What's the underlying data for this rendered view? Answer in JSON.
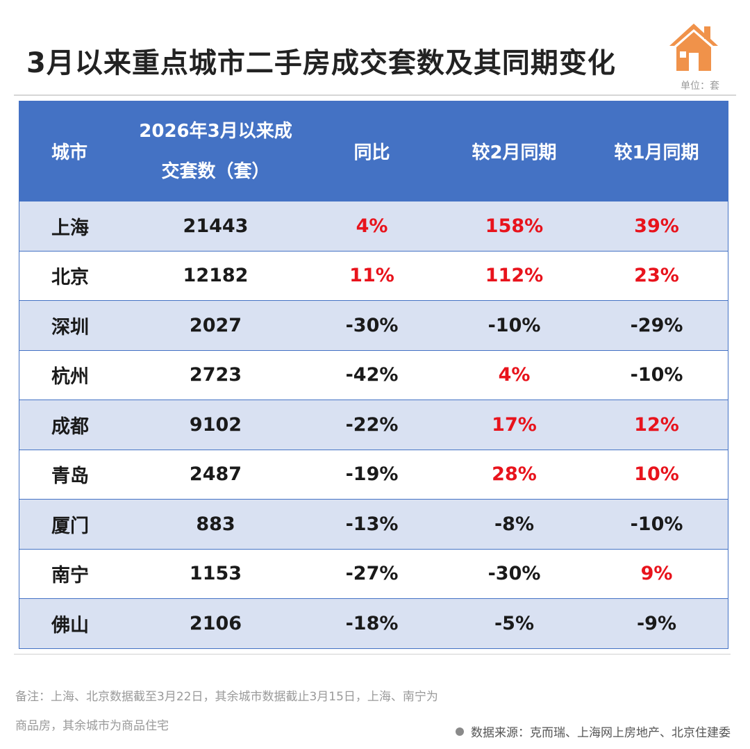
{
  "title": "3月以来重点城市二手房成交套数及其同期变化",
  "unit": "单位：套",
  "icon": "house-icon",
  "colors": {
    "header_bg": "#4472c4",
    "row_shade": "#d9e1f2",
    "positive": "#e8131c",
    "icon": "#f0924a"
  },
  "table": {
    "headers": [
      "城市",
      "2026年3月以来成",
      "交套数（套）",
      "同比",
      "较2月同期",
      "较1月同期"
    ],
    "rows": [
      {
        "city": "上海",
        "count": "21443",
        "yoy": "4%",
        "vs_feb": "158%",
        "vs_jan": "39%"
      },
      {
        "city": "北京",
        "count": "12182",
        "yoy": "11%",
        "vs_feb": "112%",
        "vs_jan": "23%"
      },
      {
        "city": "深圳",
        "count": "2027",
        "yoy": "-30%",
        "vs_feb": "-10%",
        "vs_jan": "-29%"
      },
      {
        "city": "杭州",
        "count": "2723",
        "yoy": "-42%",
        "vs_feb": "4%",
        "vs_jan": "-10%"
      },
      {
        "city": "成都",
        "count": "9102",
        "yoy": "-22%",
        "vs_feb": "17%",
        "vs_jan": "12%"
      },
      {
        "city": "青岛",
        "count": "2487",
        "yoy": "-19%",
        "vs_feb": "28%",
        "vs_jan": "10%"
      },
      {
        "city": "厦门",
        "count": "883",
        "yoy": "-13%",
        "vs_feb": "-8%",
        "vs_jan": "-10%"
      },
      {
        "city": "南宁",
        "count": "1153",
        "yoy": "-27%",
        "vs_feb": "-30%",
        "vs_jan": "9%"
      },
      {
        "city": "佛山",
        "count": "2106",
        "yoy": "-18%",
        "vs_feb": "-5%",
        "vs_jan": "-9%"
      }
    ]
  },
  "note_line1": "备注：上海、北京数据截至3月22日，其余城市数据截止3月15日，上海、南宁为",
  "note_line2": "商品房，其余城市为商品住宅",
  "source": "数据来源：克而瑞、上海网上房地产、北京住建委"
}
